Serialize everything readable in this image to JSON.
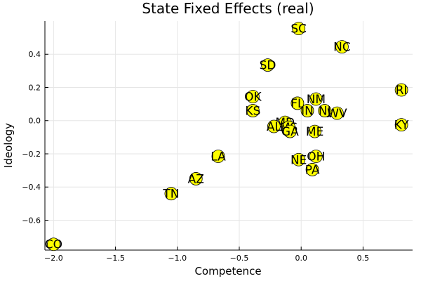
{
  "chart_data": {
    "type": "scatter",
    "title": "State Fixed Effects (real)",
    "xlabel": "Competence",
    "ylabel": "Ideology",
    "xlim": [
      -2.07,
      0.9
    ],
    "ylim": [
      -0.78,
      0.6
    ],
    "xticks": [
      -2.0,
      -1.5,
      -1.0,
      -0.5,
      0.0,
      0.5
    ],
    "xtick_labels": [
      "−2.0",
      "−1.5",
      "−1.0",
      "−0.5",
      "0.0",
      "0.5"
    ],
    "yticks": [
      -0.6,
      -0.4,
      -0.2,
      0.0,
      0.2,
      0.4
    ],
    "ytick_labels": [
      "−0.6",
      "−0.4",
      "−0.2",
      "0.0",
      "0.2",
      "0.4"
    ],
    "grid": true,
    "legend": "none",
    "marker_color": "#ffff00",
    "points": [
      {
        "label": "SC",
        "x": -0.02,
        "y": 0.555
      },
      {
        "label": "NC",
        "x": 0.33,
        "y": 0.445
      },
      {
        "label": "SD",
        "x": -0.27,
        "y": 0.335
      },
      {
        "label": "RI",
        "x": 0.81,
        "y": 0.185
      },
      {
        "label": "OK",
        "x": -0.39,
        "y": 0.145
      },
      {
        "label": "NM",
        "x": 0.12,
        "y": 0.13
      },
      {
        "label": "FL",
        "x": -0.03,
        "y": 0.105
      },
      {
        "label": "KS",
        "x": -0.39,
        "y": 0.06
      },
      {
        "label": "IN",
        "x": 0.05,
        "y": 0.06
      },
      {
        "label": "NJ",
        "x": 0.19,
        "y": 0.06
      },
      {
        "label": "WV",
        "x": 0.29,
        "y": 0.045
      },
      {
        "label": "KY",
        "x": 0.81,
        "y": -0.025
      },
      {
        "label": "MD",
        "x": -0.13,
        "y": -0.01
      },
      {
        "label": "MS",
        "x": -0.1,
        "y": -0.04
      },
      {
        "label": "AL",
        "x": -0.22,
        "y": -0.035
      },
      {
        "label": "GA",
        "x": -0.09,
        "y": -0.065
      },
      {
        "label": "ME",
        "x": 0.11,
        "y": -0.065
      },
      {
        "label": "LA",
        "x": -0.67,
        "y": -0.215
      },
      {
        "label": "OH",
        "x": 0.12,
        "y": -0.215
      },
      {
        "label": "NE",
        "x": -0.02,
        "y": -0.235
      },
      {
        "label": "PA",
        "x": 0.09,
        "y": -0.295
      },
      {
        "label": "AZ",
        "x": -0.85,
        "y": -0.35
      },
      {
        "label": "TN",
        "x": -1.05,
        "y": -0.44
      },
      {
        "label": "CO",
        "x": -2.0,
        "y": -0.745
      }
    ]
  }
}
